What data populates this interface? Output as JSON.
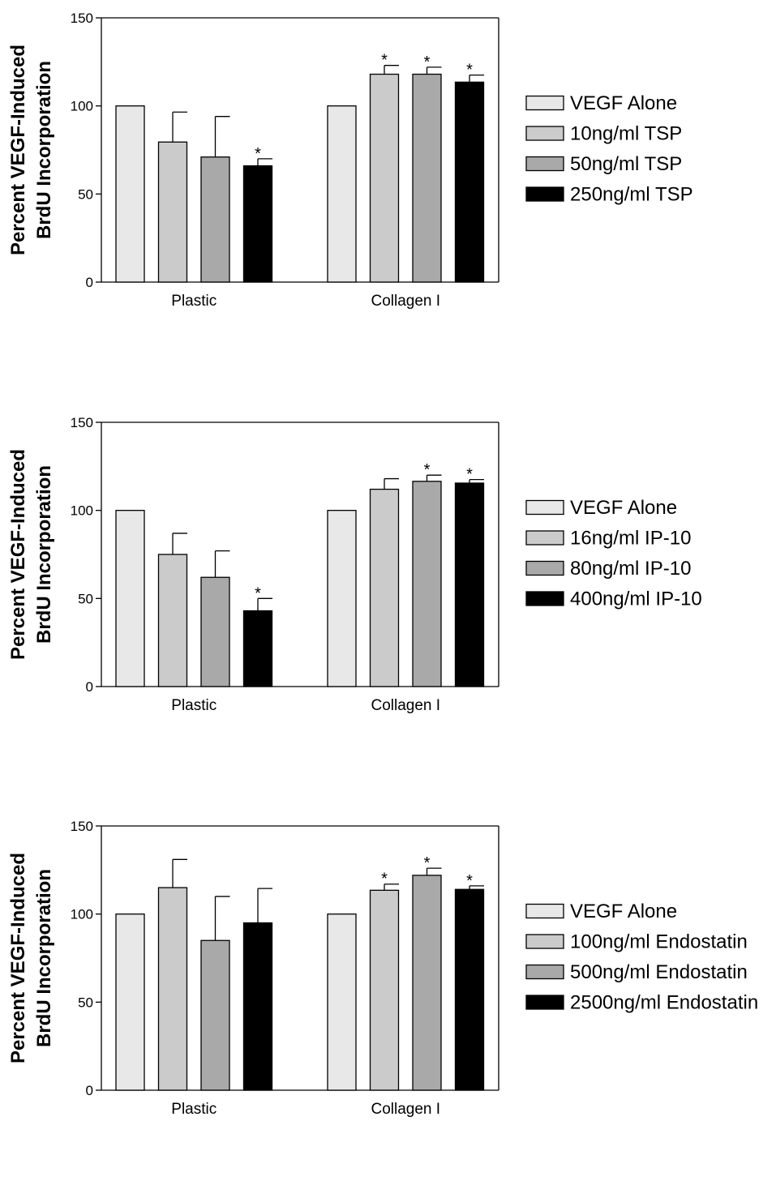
{
  "colors": {
    "series": [
      "#e8e8e8",
      "#cbcbcb",
      "#a9a9a9",
      "#000000"
    ],
    "stroke": "#000000"
  },
  "chart_data": [
    {
      "type": "bar",
      "ylabel_line1": "Percent VEGF-Induced",
      "ylabel_line2": "BrdU Incorporation",
      "ylim": [
        0,
        150
      ],
      "yticks": [
        "0",
        "50",
        "100",
        "150"
      ],
      "categories": [
        "Plastic",
        "Collagen I"
      ],
      "legend_position": "right",
      "series": [
        {
          "name": "VEGF Alone",
          "values": [
            100,
            100
          ],
          "errors": [
            0,
            0
          ],
          "stars": [
            false,
            false
          ]
        },
        {
          "name": "10ng/ml TSP",
          "values": [
            79.5,
            118
          ],
          "errors": [
            17,
            5
          ],
          "stars": [
            false,
            true
          ]
        },
        {
          "name": "50ng/ml TSP",
          "values": [
            71,
            118
          ],
          "errors": [
            23,
            4
          ],
          "stars": [
            false,
            true
          ]
        },
        {
          "name": "250ng/ml TSP",
          "values": [
            66,
            113.5
          ],
          "errors": [
            4,
            4
          ],
          "stars": [
            true,
            true
          ]
        }
      ]
    },
    {
      "type": "bar",
      "ylabel_line1": "Percent VEGF-Induced",
      "ylabel_line2": "BrdU Incorporation",
      "ylim": [
        0,
        150
      ],
      "yticks": [
        "0",
        "50",
        "100",
        "150"
      ],
      "categories": [
        "Plastic",
        "Collagen I"
      ],
      "legend_position": "right",
      "series": [
        {
          "name": "VEGF Alone",
          "values": [
            100,
            100
          ],
          "errors": [
            0,
            0
          ],
          "stars": [
            false,
            false
          ]
        },
        {
          "name": "16ng/ml IP-10",
          "values": [
            75,
            112
          ],
          "errors": [
            12,
            6
          ],
          "stars": [
            false,
            false
          ]
        },
        {
          "name": "80ng/ml IP-10",
          "values": [
            62,
            116.5
          ],
          "errors": [
            15,
            3.5
          ],
          "stars": [
            false,
            true
          ]
        },
        {
          "name": "400ng/ml IP-10",
          "values": [
            43,
            115.5
          ],
          "errors": [
            7,
            2
          ],
          "stars": [
            true,
            true
          ]
        }
      ]
    },
    {
      "type": "bar",
      "ylabel_line1": "Percent VEGF-Induced",
      "ylabel_line2": "BrdU Incorporation",
      "ylim": [
        0,
        150
      ],
      "yticks": [
        "0",
        "50",
        "100",
        "150"
      ],
      "categories": [
        "Plastic",
        "Collagen I"
      ],
      "legend_position": "right",
      "series": [
        {
          "name": "VEGF Alone",
          "values": [
            100,
            100
          ],
          "errors": [
            0,
            0
          ],
          "stars": [
            false,
            false
          ]
        },
        {
          "name": "100ng/ml Endostatin",
          "values": [
            115,
            113.5
          ],
          "errors": [
            16,
            3.5
          ],
          "stars": [
            false,
            true
          ]
        },
        {
          "name": "500ng/ml Endostatin",
          "values": [
            85,
            122
          ],
          "errors": [
            25,
            4
          ],
          "stars": [
            false,
            true
          ]
        },
        {
          "name": "2500ng/ml Endostatin",
          "values": [
            95,
            114
          ],
          "errors": [
            19.5,
            2
          ],
          "stars": [
            false,
            true
          ]
        }
      ]
    }
  ]
}
